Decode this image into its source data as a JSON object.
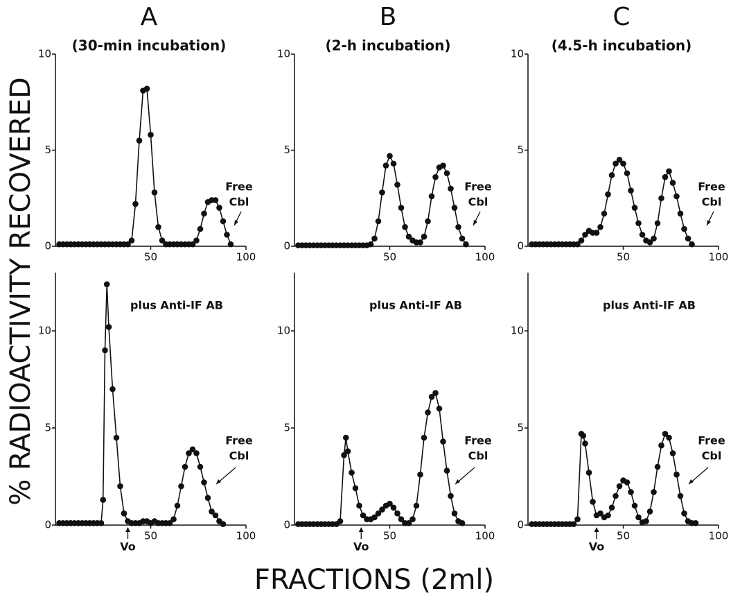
{
  "y_label": "% RADIOACTIVITY RECOVERED",
  "x_label": "FRACTIONS (2ml)",
  "chart_data": [
    {
      "type": "line",
      "title": "A",
      "subtitle": "(30-min incubation)",
      "annotation": [
        "Free",
        "Cbl"
      ],
      "x": [
        2,
        4,
        6,
        8,
        10,
        12,
        14,
        16,
        18,
        20,
        22,
        24,
        26,
        28,
        30,
        32,
        34,
        36,
        38,
        40,
        42,
        44,
        46,
        48,
        50,
        52,
        54,
        56,
        58,
        60,
        62,
        64,
        66,
        68,
        70,
        72,
        74,
        76,
        78,
        80,
        82,
        84,
        86,
        88,
        90,
        92
      ],
      "values": [
        0.1,
        0.1,
        0.1,
        0.1,
        0.1,
        0.1,
        0.1,
        0.1,
        0.1,
        0.1,
        0.1,
        0.1,
        0.1,
        0.1,
        0.1,
        0.1,
        0.1,
        0.1,
        0.1,
        0.3,
        2.2,
        5.5,
        8.1,
        8.2,
        5.8,
        2.8,
        1.0,
        0.3,
        0.1,
        0.1,
        0.1,
        0.1,
        0.1,
        0.1,
        0.1,
        0.1,
        0.3,
        0.9,
        1.7,
        2.3,
        2.4,
        2.4,
        2.0,
        1.3,
        0.6,
        0.1
      ],
      "xlim": [
        0,
        100
      ],
      "xticks": [
        50,
        100
      ],
      "ylim": [
        0,
        10
      ],
      "yticks": [
        0,
        5,
        10
      ],
      "color": "#111111"
    },
    {
      "type": "line",
      "title": "B",
      "subtitle": "(2-h incubation)",
      "annotation": [
        "Free",
        "Cbl"
      ],
      "x": [
        2,
        4,
        6,
        8,
        10,
        12,
        14,
        16,
        18,
        20,
        22,
        24,
        26,
        28,
        30,
        32,
        34,
        36,
        38,
        40,
        42,
        44,
        46,
        48,
        50,
        52,
        54,
        56,
        58,
        60,
        62,
        64,
        66,
        68,
        70,
        72,
        74,
        76,
        78,
        80,
        82,
        84,
        86,
        88,
        90
      ],
      "values": [
        0.05,
        0.05,
        0.05,
        0.05,
        0.05,
        0.05,
        0.05,
        0.05,
        0.05,
        0.05,
        0.05,
        0.05,
        0.05,
        0.05,
        0.05,
        0.05,
        0.05,
        0.05,
        0.05,
        0.1,
        0.4,
        1.3,
        2.8,
        4.2,
        4.7,
        4.3,
        3.2,
        2.0,
        1.0,
        0.5,
        0.3,
        0.2,
        0.2,
        0.5,
        1.3,
        2.6,
        3.6,
        4.1,
        4.2,
        3.8,
        3.0,
        2.0,
        1.0,
        0.4,
        0.1
      ],
      "xlim": [
        0,
        100
      ],
      "xticks": [
        50,
        100
      ],
      "ylim": [
        0,
        10
      ],
      "yticks": [
        0,
        5,
        10
      ],
      "color": "#111111"
    },
    {
      "type": "line",
      "title": "C",
      "subtitle": "(4.5-h incubation)",
      "annotation": [
        "Free",
        "Cbl"
      ],
      "x": [
        2,
        4,
        6,
        8,
        10,
        12,
        14,
        16,
        18,
        20,
        22,
        24,
        26,
        28,
        30,
        32,
        34,
        36,
        38,
        40,
        42,
        44,
        46,
        48,
        50,
        52,
        54,
        56,
        58,
        60,
        62,
        64,
        66,
        68,
        70,
        72,
        74,
        76,
        78,
        80,
        82,
        84,
        86
      ],
      "values": [
        0.1,
        0.1,
        0.1,
        0.1,
        0.1,
        0.1,
        0.1,
        0.1,
        0.1,
        0.1,
        0.1,
        0.1,
        0.1,
        0.3,
        0.6,
        0.8,
        0.7,
        0.7,
        1.0,
        1.7,
        2.7,
        3.7,
        4.3,
        4.5,
        4.3,
        3.8,
        2.9,
        2.0,
        1.2,
        0.6,
        0.3,
        0.2,
        0.4,
        1.2,
        2.5,
        3.6,
        3.9,
        3.3,
        2.6,
        1.7,
        0.9,
        0.4,
        0.1
      ],
      "xlim": [
        0,
        100
      ],
      "xticks": [
        50,
        100
      ],
      "ylim": [
        0,
        10
      ],
      "yticks": [
        0,
        5,
        10
      ],
      "color": "#111111"
    },
    {
      "type": "line",
      "title": "plus Anti-IF AB",
      "annotation": [
        "Free",
        "Cbl"
      ],
      "vo_label": "Vo",
      "vo_x": 38,
      "x": [
        2,
        4,
        6,
        8,
        10,
        12,
        14,
        16,
        18,
        20,
        22,
        24,
        25,
        26,
        27,
        28,
        30,
        32,
        34,
        36,
        38,
        40,
        42,
        44,
        46,
        48,
        50,
        52,
        54,
        56,
        58,
        60,
        62,
        64,
        66,
        68,
        70,
        72,
        74,
        76,
        78,
        80,
        82,
        84,
        86,
        88
      ],
      "values": [
        0.1,
        0.1,
        0.1,
        0.1,
        0.1,
        0.1,
        0.1,
        0.1,
        0.1,
        0.1,
        0.1,
        0.1,
        1.3,
        9.0,
        12.4,
        10.2,
        7.0,
        4.5,
        2.0,
        0.6,
        0.2,
        0.1,
        0.1,
        0.1,
        0.2,
        0.2,
        0.1,
        0.2,
        0.1,
        0.1,
        0.1,
        0.1,
        0.3,
        1.0,
        2.0,
        3.0,
        3.7,
        3.9,
        3.7,
        3.0,
        2.2,
        1.4,
        0.7,
        0.5,
        0.2,
        0.05
      ],
      "xlim": [
        0,
        100
      ],
      "xticks": [
        50,
        100
      ],
      "ylim": [
        0,
        13
      ],
      "yticks": [
        0,
        5,
        10
      ],
      "color": "#111111"
    },
    {
      "type": "line",
      "title": "plus Anti-IF AB",
      "annotation": [
        "Free",
        "Cbl"
      ],
      "vo_label": "Vo",
      "vo_x": 35,
      "x": [
        2,
        4,
        6,
        8,
        10,
        12,
        14,
        16,
        18,
        20,
        22,
        24,
        26,
        27,
        28,
        30,
        32,
        34,
        36,
        38,
        40,
        42,
        44,
        46,
        48,
        50,
        52,
        54,
        56,
        58,
        60,
        62,
        64,
        66,
        68,
        70,
        72,
        74,
        76,
        78,
        80,
        82,
        84,
        86,
        88
      ],
      "values": [
        0.05,
        0.05,
        0.05,
        0.05,
        0.05,
        0.05,
        0.05,
        0.05,
        0.05,
        0.05,
        0.05,
        0.2,
        3.6,
        4.5,
        3.8,
        2.7,
        1.9,
        1.0,
        0.5,
        0.3,
        0.3,
        0.4,
        0.6,
        0.8,
        1.0,
        1.1,
        0.9,
        0.6,
        0.3,
        0.1,
        0.1,
        0.3,
        1.0,
        2.6,
        4.5,
        5.8,
        6.6,
        6.8,
        6.0,
        4.3,
        2.8,
        1.5,
        0.6,
        0.2,
        0.1
      ],
      "xlim": [
        0,
        100
      ],
      "xticks": [
        50,
        100
      ],
      "ylim": [
        0,
        13
      ],
      "yticks": [
        0,
        5,
        10
      ],
      "color": "#111111"
    },
    {
      "type": "line",
      "title": "plus Anti-IF AB",
      "annotation": [
        "Free",
        "Cbl"
      ],
      "vo_label": "Vo",
      "vo_x": 36,
      "x": [
        2,
        4,
        6,
        8,
        10,
        12,
        14,
        16,
        18,
        20,
        22,
        24,
        26,
        28,
        29,
        30,
        32,
        34,
        36,
        38,
        40,
        42,
        44,
        46,
        48,
        50,
        52,
        54,
        56,
        58,
        60,
        62,
        64,
        66,
        68,
        70,
        72,
        74,
        76,
        78,
        80,
        82,
        84,
        86,
        88
      ],
      "values": [
        0.05,
        0.05,
        0.05,
        0.05,
        0.05,
        0.05,
        0.05,
        0.05,
        0.05,
        0.05,
        0.05,
        0.05,
        0.3,
        4.7,
        4.6,
        4.2,
        2.7,
        1.2,
        0.5,
        0.6,
        0.4,
        0.5,
        0.9,
        1.5,
        2.0,
        2.3,
        2.2,
        1.7,
        1.0,
        0.4,
        0.15,
        0.2,
        0.7,
        1.7,
        3.0,
        4.1,
        4.7,
        4.5,
        3.7,
        2.6,
        1.5,
        0.6,
        0.2,
        0.1,
        0.1
      ],
      "xlim": [
        0,
        100
      ],
      "xticks": [
        50,
        100
      ],
      "ylim": [
        0,
        13
      ],
      "yticks": [
        0,
        5,
        10
      ],
      "color": "#111111"
    }
  ]
}
